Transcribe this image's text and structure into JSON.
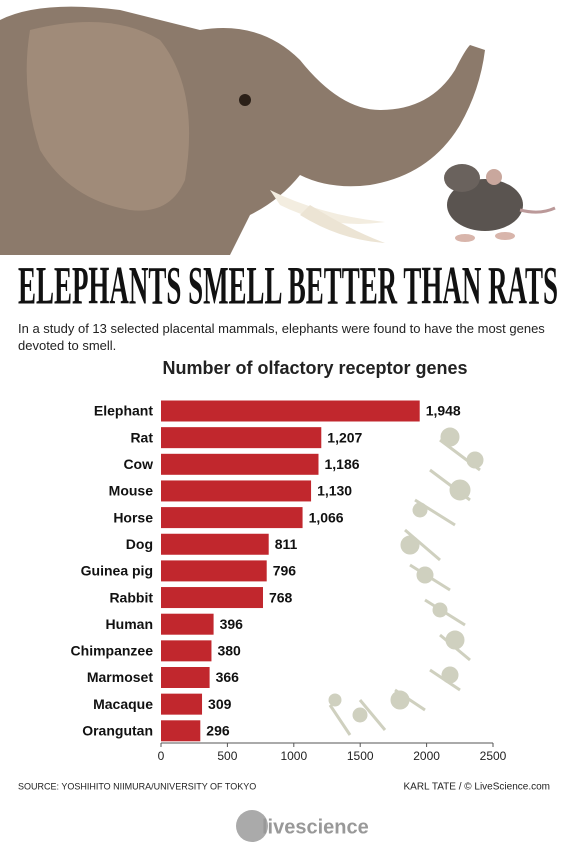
{
  "headline": "ELEPHANTS SMELL BETTER THAN RATS",
  "intro": "In a study of 13 selected placental mammals, elephants were found to have the most genes devoted to smell.",
  "source": "SOURCE: YOSHIHITO NIIMURA/UNIVERSITY OF TOKYO",
  "credit": "KARL TATE / © LiveScience.com",
  "logo": "livescience",
  "chart_data": {
    "type": "bar",
    "orientation": "horizontal",
    "title": "Number of olfactory receptor genes",
    "categories": [
      "Elephant",
      "Rat",
      "Cow",
      "Mouse",
      "Horse",
      "Dog",
      "Guinea pig",
      "Rabbit",
      "Human",
      "Chimpanzee",
      "Marmoset",
      "Macaque",
      "Orangutan"
    ],
    "values": [
      1948,
      1207,
      1186,
      1130,
      1066,
      811,
      796,
      768,
      396,
      380,
      366,
      309,
      296
    ],
    "value_labels": [
      "1,948",
      "1,207",
      "1,186",
      "1,130",
      "1,066",
      "811",
      "796",
      "768",
      "396",
      "380",
      "366",
      "309",
      "296"
    ],
    "color": "#c1272d",
    "xlim": [
      0,
      2500
    ],
    "xticks": [
      0,
      500,
      1000,
      1500,
      2000,
      2500
    ],
    "grid": false
  }
}
